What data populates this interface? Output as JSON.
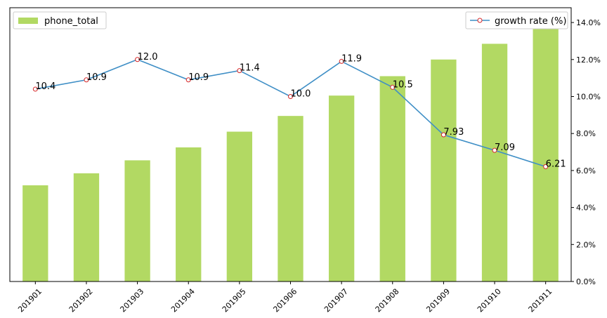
{
  "chart_data": {
    "type": "bar",
    "categories": [
      "201901",
      "201902",
      "201903",
      "201904",
      "201905",
      "201906",
      "201907",
      "201908",
      "201909",
      "201910",
      "201911"
    ],
    "series": [
      {
        "name": "phone_total",
        "type": "bar",
        "axis": "left-hidden",
        "color": "#b2d963",
        "values": [
          5.2,
          5.85,
          6.55,
          7.25,
          8.1,
          8.95,
          10.05,
          11.1,
          12.0,
          12.85,
          13.65
        ]
      },
      {
        "name": "growth rate (%)",
        "type": "line",
        "axis": "right",
        "color": "#3f8fc6",
        "marker_edge": "#d62728",
        "values": [
          10.4,
          10.9,
          12.0,
          10.9,
          11.4,
          10.0,
          11.9,
          10.5,
          7.93,
          7.09,
          6.21
        ],
        "labels": [
          "10.4",
          "10.9",
          "12.0",
          "10.9",
          "11.4",
          "10.0",
          "11.9",
          "10.5",
          "7.93",
          "7.09",
          "6.21"
        ]
      }
    ],
    "bar_axis": {
      "ylim": [
        0,
        14.8
      ]
    },
    "right_axis": {
      "ylim": [
        0,
        14.8
      ],
      "ticks": [
        "0.0%",
        "2.0%",
        "4.0%",
        "6.0%",
        "8.0%",
        "10.0%",
        "12.0%",
        "14.0%"
      ],
      "tick_values": [
        0,
        2,
        4,
        6,
        8,
        10,
        12,
        14
      ]
    },
    "legends": [
      {
        "position": "top-left",
        "label": "phone_total"
      },
      {
        "position": "top-right",
        "label": "growth rate (%)"
      }
    ],
    "grid": false
  }
}
